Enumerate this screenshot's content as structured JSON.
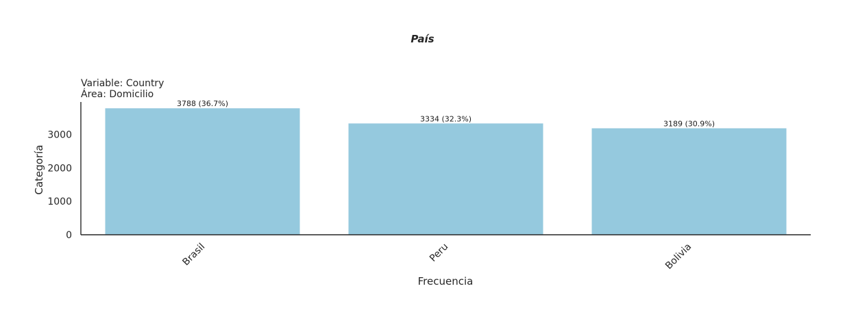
{
  "chart_data": {
    "type": "bar",
    "title": "País",
    "subtitle_lines": [
      "Variable: Country",
      "Área: Domicilio"
    ],
    "xlabel": "Frecuencia",
    "ylabel": "Categoría",
    "categories": [
      "Brasil",
      "Peru",
      "Bolivia"
    ],
    "values": [
      3788,
      3334,
      3189
    ],
    "data_labels": [
      "3788 (36.7%)",
      "3334 (32.3%)",
      "3189 (30.9%)"
    ],
    "yticks": [
      0,
      1000,
      2000,
      3000
    ],
    "ylim": [
      0,
      3977
    ],
    "bar_color": "#95c9de",
    "grid": false
  }
}
